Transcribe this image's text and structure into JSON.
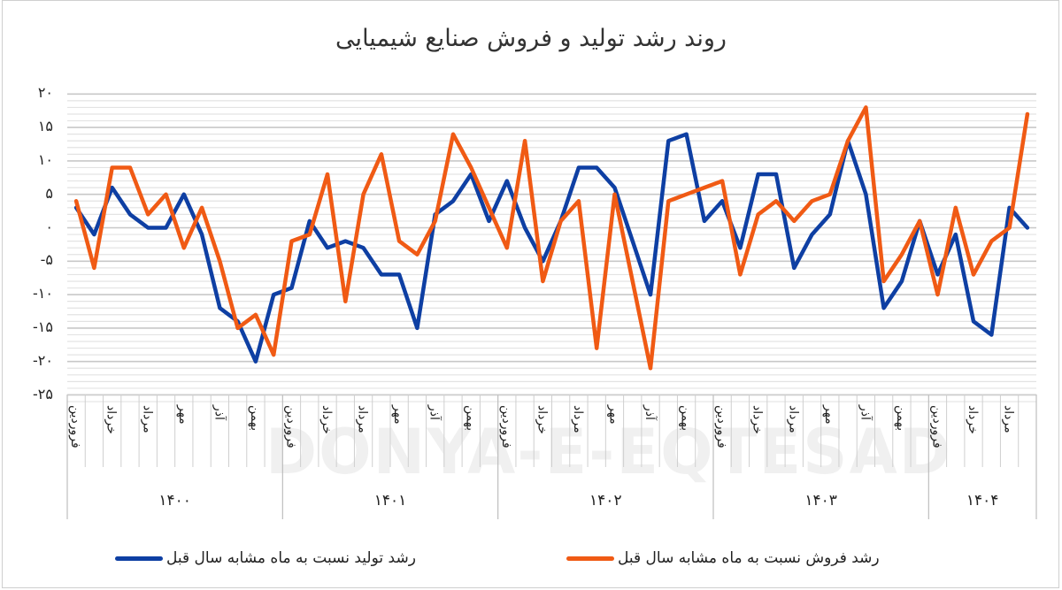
{
  "title": "روند رشد تولید و فروش صنایع شیمیایی",
  "watermark": "DONYA-E-EQTESAD",
  "colors": {
    "production": "#0E3FA3",
    "sales": "#F05A14",
    "grid_major": "#c8c8c8",
    "grid_minor": "#e3e3e3"
  },
  "legend": {
    "production": "رشد تولید نسبت به ماه مشابه سال قبل",
    "sales": "رشد فروش نسبت به ماه مشابه سال قبل"
  },
  "y_ticks": [
    "۲۰",
    "۱۵",
    "۱۰",
    "۵",
    "۰",
    "-۵",
    "-۱۰",
    "-۱۵",
    "-۲۰",
    "-۲۵"
  ],
  "years": [
    {
      "label": "۱۴۰۰",
      "months": 12
    },
    {
      "label": "۱۴۰۱",
      "months": 12
    },
    {
      "label": "۱۴۰۲",
      "months": 12
    },
    {
      "label": "۱۴۰۳",
      "months": 12
    },
    {
      "label": "۱۴۰۴",
      "months": 6
    }
  ],
  "month_labels": [
    "فروردین",
    "",
    "خرداد",
    "",
    "مرداد",
    "",
    "مهر",
    "",
    "آذر",
    "",
    "بهمن",
    ""
  ],
  "chart_data": {
    "type": "line",
    "title": "روند رشد تولید و فروش صنایع شیمیایی",
    "xlabel": "",
    "ylabel": "",
    "ylim": [
      -25,
      20
    ],
    "y_major_step": 5,
    "y_minor_step": 1,
    "grid": true,
    "legend_position": "bottom",
    "x_groups": [
      "۱۴۰۰",
      "۱۴۰۱",
      "۱۴۰۲",
      "۱۴۰۳",
      "۱۴۰۴"
    ],
    "categories": [
      "1400-فروردین",
      "1400-اردیبهشت",
      "1400-خرداد",
      "1400-تیر",
      "1400-مرداد",
      "1400-شهریور",
      "1400-مهر",
      "1400-آبان",
      "1400-آذر",
      "1400-دی",
      "1400-بهمن",
      "1400-اسفند",
      "1401-فروردین",
      "1401-اردیبهشت",
      "1401-خرداد",
      "1401-تیر",
      "1401-مرداد",
      "1401-شهریور",
      "1401-مهر",
      "1401-آبان",
      "1401-آذر",
      "1401-دی",
      "1401-بهمن",
      "1401-اسفند",
      "1402-فروردین",
      "1402-اردیبهشت",
      "1402-خرداد",
      "1402-تیر",
      "1402-مرداد",
      "1402-شهریور",
      "1402-مهر",
      "1402-آبان",
      "1402-آذر",
      "1402-دی",
      "1402-بهمن",
      "1402-اسفند",
      "1403-فروردین",
      "1403-اردیبهشت",
      "1403-خرداد",
      "1403-تیر",
      "1403-مرداد",
      "1403-شهریور",
      "1403-مهر",
      "1403-آبان",
      "1403-آذر",
      "1403-دی",
      "1403-بهمن",
      "1403-اسفند",
      "1404-فروردین",
      "1404-اردیبهشت",
      "1404-خرداد",
      "1404-تیر",
      "1404-مرداد",
      "1404-شهریور"
    ],
    "series": [
      {
        "name": "رشد تولید نسبت به ماه مشابه سال قبل",
        "color": "#0E3FA3",
        "values": [
          3,
          -1,
          6,
          2,
          0,
          0,
          5,
          -1,
          -12,
          -14,
          -20,
          -10,
          -9,
          1,
          -3,
          -2,
          -3,
          -7,
          -7,
          -15,
          2,
          4,
          8,
          1,
          7,
          0,
          -5,
          1,
          9,
          9,
          6,
          -2,
          -10,
          13,
          14,
          1,
          4,
          -3,
          8,
          8,
          -6,
          -1,
          2,
          13,
          5,
          -12,
          -8,
          1,
          -7,
          -1,
          -14,
          -16,
          3,
          0
        ]
      },
      {
        "name": "رشد فروش نسبت به ماه مشابه سال قبل",
        "color": "#F05A14",
        "values": [
          4,
          -6,
          9,
          9,
          2,
          5,
          -3,
          3,
          -5,
          -15,
          -13,
          -19,
          -2,
          -1,
          8,
          -11,
          5,
          11,
          -2,
          -4,
          1,
          14,
          9,
          3,
          -3,
          13,
          -8,
          1,
          4,
          -18,
          5,
          -8,
          -21,
          4,
          5,
          6,
          7,
          -7,
          2,
          4,
          1,
          4,
          5,
          13,
          18,
          -8,
          -4,
          1,
          -10,
          3,
          -7,
          -2,
          0,
          17
        ]
      }
    ]
  }
}
